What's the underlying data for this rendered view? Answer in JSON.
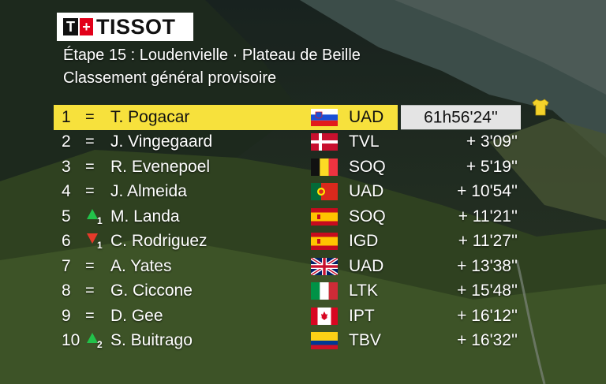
{
  "logo": {
    "brand": "TISSOT",
    "t": "T",
    "cross": "+"
  },
  "header": {
    "stage": "Étape 15 : Loudenvielle · Plateau de Beille",
    "subtitle": "Classement général provisoire"
  },
  "colors": {
    "leader_bar": "#f7e13c",
    "time_box": "#e4e4e4",
    "up": "#22c24a",
    "down": "#e53a2a"
  },
  "standings": [
    {
      "pos": "1",
      "change": "=",
      "name": "T. Pogacar",
      "flag": "slovenia",
      "team": "UAD",
      "gap": "61h56'24''"
    },
    {
      "pos": "2",
      "change": "=",
      "name": "J. Vingegaard",
      "flag": "denmark",
      "team": "TVL",
      "gap": "+  3'09''"
    },
    {
      "pos": "3",
      "change": "=",
      "name": "R. Evenepoel",
      "flag": "belgium",
      "team": "SOQ",
      "gap": "+  5'19''"
    },
    {
      "pos": "4",
      "change": "=",
      "name": "J. Almeida",
      "flag": "portugal",
      "team": "UAD",
      "gap": "+ 10'54''"
    },
    {
      "pos": "5",
      "change": "up",
      "change_n": "1",
      "name": "M. Landa",
      "flag": "spain",
      "team": "SOQ",
      "gap": "+ 11'21''"
    },
    {
      "pos": "6",
      "change": "down",
      "change_n": "1",
      "name": "C. Rodriguez",
      "flag": "spain",
      "team": "IGD",
      "gap": "+ 11'27''"
    },
    {
      "pos": "7",
      "change": "=",
      "name": "A. Yates",
      "flag": "uk",
      "team": "UAD",
      "gap": "+ 13'38''"
    },
    {
      "pos": "8",
      "change": "=",
      "name": "G. Ciccone",
      "flag": "italy",
      "team": "LTK",
      "gap": "+ 15'48''"
    },
    {
      "pos": "9",
      "change": "=",
      "name": "D. Gee",
      "flag": "canada",
      "team": "IPT",
      "gap": "+ 16'12''"
    },
    {
      "pos": "10",
      "change": "up",
      "change_n": "2",
      "name": "S. Buitrago",
      "flag": "colombia",
      "team": "TBV",
      "gap": "+ 16'32''"
    }
  ]
}
